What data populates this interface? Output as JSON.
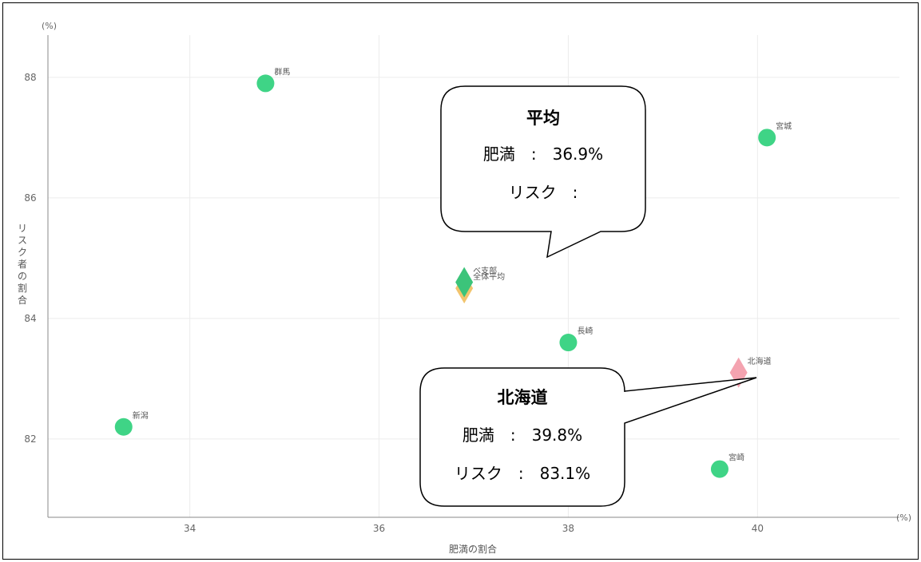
{
  "chart_data": {
    "type": "scatter",
    "xlabel": "肥満の割合",
    "ylabel": "リスク者の割合",
    "x_unit": "(%)",
    "y_unit": "(%)",
    "xlim": [
      32.5,
      41.5
    ],
    "ylim": [
      80.7,
      88.7
    ],
    "x_ticks": [
      34,
      36,
      38,
      40
    ],
    "y_ticks": [
      82,
      84,
      86,
      88
    ],
    "grid": true,
    "points": [
      {
        "label": "群馬",
        "x": 34.8,
        "y": 87.9,
        "shape": "circle",
        "color": "#3fd486"
      },
      {
        "label": "宮城",
        "x": 40.1,
        "y": 87.0,
        "shape": "circle",
        "color": "#3fd486"
      },
      {
        "label": "新潟",
        "x": 33.3,
        "y": 82.2,
        "shape": "circle",
        "color": "#3fd486"
      },
      {
        "label": "長崎",
        "x": 38.0,
        "y": 83.6,
        "shape": "circle",
        "color": "#3fd486"
      },
      {
        "label": "宮崎",
        "x": 39.6,
        "y": 81.5,
        "shape": "circle",
        "color": "#3fd486"
      },
      {
        "label": "全体平均",
        "x": 36.9,
        "y": 84.5,
        "shape": "diamond",
        "color": "#f2c46d"
      },
      {
        "label": "ベ支部",
        "x": 36.9,
        "y": 84.6,
        "shape": "diamond",
        "color": "#3cc47a"
      },
      {
        "label": "北海道",
        "x": 39.8,
        "y": 83.1,
        "shape": "diamond",
        "color": "#f4a3b0"
      }
    ],
    "callouts": [
      {
        "target_label": "全体平均",
        "title": "平均",
        "line1": "肥満　:　36.9%",
        "line2": "リスク　:"
      },
      {
        "target_label": "北海道",
        "title": "北海道",
        "line1": "肥満　:　39.8%",
        "line2": "リスク　:　83.1%"
      }
    ]
  }
}
